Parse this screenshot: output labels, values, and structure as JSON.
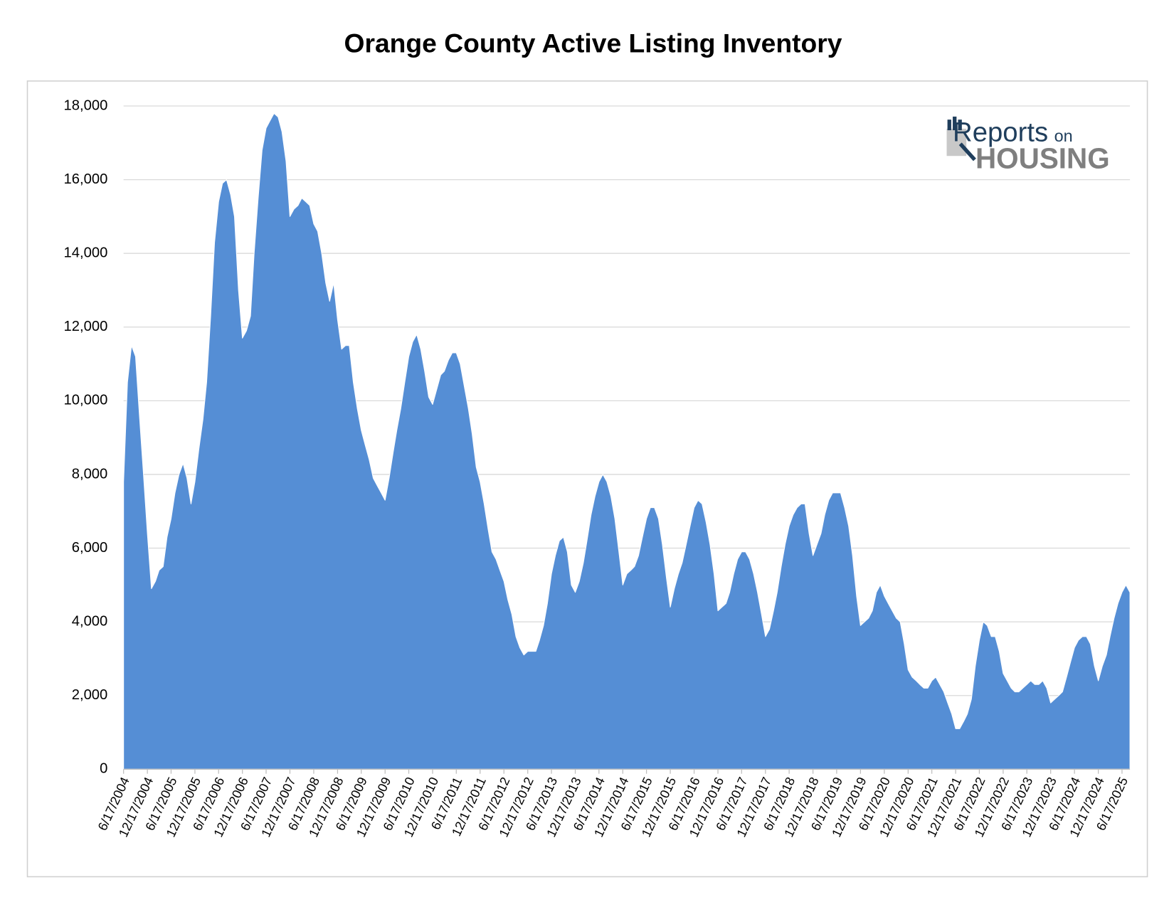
{
  "chart_data": {
    "type": "area",
    "title": "Orange County Active Listing Inventory",
    "color": "#558ed5",
    "grid": true,
    "ylim": [
      0,
      18000
    ],
    "yticks": [
      0,
      {
        "value": 2000,
        "label": "2,000"
      },
      {
        "value": 4000,
        "label": "4,000"
      },
      {
        "value": 6000,
        "label": "6,000"
      },
      {
        "value": 8000,
        "label": "8,000"
      },
      {
        "value": 10000,
        "label": "10,000"
      },
      {
        "value": 12000,
        "label": "12,000"
      },
      {
        "value": 14000,
        "label": "14,000"
      },
      {
        "value": 16000,
        "label": "16,000"
      },
      {
        "value": 18000,
        "label": "18,000"
      }
    ],
    "xlim": [
      "6/17/2004",
      "8/17/2025"
    ],
    "xticks": [
      "6/17/2004",
      "12/17/2004",
      "6/17/2005",
      "12/17/2005",
      "6/17/2006",
      "12/17/2006",
      "6/17/2007",
      "12/17/2007",
      "6/17/2008",
      "12/17/2008",
      "6/17/2009",
      "12/17/2009",
      "6/17/2010",
      "12/17/2010",
      "6/17/2011",
      "12/17/2011",
      "6/17/2012",
      "12/17/2012",
      "6/17/2013",
      "12/17/2013",
      "6/17/2014",
      "12/17/2014",
      "6/17/2015",
      "12/17/2015",
      "6/17/2016",
      "12/17/2016",
      "6/17/2017",
      "12/17/2017",
      "6/17/2018",
      "12/17/2018",
      "6/17/2019",
      "12/17/2019",
      "6/17/2020",
      "12/17/2020",
      "6/17/2021",
      "12/17/2021",
      "6/17/2022",
      "12/17/2022",
      "6/17/2023",
      "12/17/2023",
      "6/17/2024",
      "12/17/2024",
      "6/17/2025"
    ],
    "x": [
      "6/17/2004",
      "7/17/2004",
      "8/17/2004",
      "9/17/2004",
      "10/17/2004",
      "11/17/2004",
      "12/17/2004",
      "1/17/2005",
      "2/17/2005",
      "3/17/2005",
      "4/17/2005",
      "5/17/2005",
      "6/17/2005",
      "7/17/2005",
      "8/17/2005",
      "9/17/2005",
      "10/17/2005",
      "11/17/2005",
      "12/17/2005",
      "1/17/2006",
      "2/17/2006",
      "3/17/2006",
      "4/17/2006",
      "5/17/2006",
      "6/17/2006",
      "7/17/2006",
      "8/17/2006",
      "9/17/2006",
      "10/17/2006",
      "11/17/2006",
      "12/17/2006",
      "1/17/2007",
      "2/17/2007",
      "3/17/2007",
      "4/17/2007",
      "5/17/2007",
      "6/17/2007",
      "7/17/2007",
      "8/17/2007",
      "9/17/2007",
      "10/17/2007",
      "11/17/2007",
      "12/17/2007",
      "1/17/2008",
      "2/17/2008",
      "3/17/2008",
      "4/17/2008",
      "5/17/2008",
      "6/17/2008",
      "7/17/2008",
      "8/17/2008",
      "9/17/2008",
      "10/17/2008",
      "11/17/2008",
      "12/17/2008",
      "1/17/2009",
      "2/17/2009",
      "3/17/2009",
      "4/17/2009",
      "5/17/2009",
      "6/17/2009",
      "7/17/2009",
      "8/17/2009",
      "9/17/2009",
      "10/17/2009",
      "11/17/2009",
      "12/17/2009",
      "1/17/2010",
      "2/17/2010",
      "3/17/2010",
      "4/17/2010",
      "5/17/2010",
      "6/17/2010",
      "7/17/2010",
      "8/17/2010",
      "9/17/2010",
      "10/17/2010",
      "11/17/2010",
      "12/17/2010",
      "1/17/2011",
      "2/17/2011",
      "3/17/2011",
      "4/17/2011",
      "5/17/2011",
      "6/17/2011",
      "7/17/2011",
      "8/17/2011",
      "9/17/2011",
      "10/17/2011",
      "11/17/2011",
      "12/17/2011",
      "1/17/2012",
      "2/17/2012",
      "3/17/2012",
      "4/17/2012",
      "5/17/2012",
      "6/17/2012",
      "7/17/2012",
      "8/17/2012",
      "9/17/2012",
      "10/17/2012",
      "11/17/2012",
      "12/17/2012",
      "1/17/2013",
      "2/17/2013",
      "3/17/2013",
      "4/17/2013",
      "5/17/2013",
      "6/17/2013",
      "7/17/2013",
      "8/17/2013",
      "9/17/2013",
      "10/17/2013",
      "11/17/2013",
      "12/17/2013",
      "1/17/2014",
      "2/17/2014",
      "3/17/2014",
      "4/17/2014",
      "5/17/2014",
      "6/17/2014",
      "7/17/2014",
      "8/17/2014",
      "9/17/2014",
      "10/17/2014",
      "11/17/2014",
      "12/17/2014",
      "1/17/2015",
      "2/17/2015",
      "3/17/2015",
      "4/17/2015",
      "5/17/2015",
      "6/17/2015",
      "7/17/2015",
      "8/17/2015",
      "9/17/2015",
      "10/17/2015",
      "11/17/2015",
      "12/17/2015",
      "1/17/2016",
      "2/17/2016",
      "3/17/2016",
      "4/17/2016",
      "5/17/2016",
      "6/17/2016",
      "7/17/2016",
      "8/17/2016",
      "9/17/2016",
      "10/17/2016",
      "11/17/2016",
      "12/17/2016",
      "1/17/2017",
      "2/17/2017",
      "3/17/2017",
      "4/17/2017",
      "5/17/2017",
      "6/17/2017",
      "7/17/2017",
      "8/17/2017",
      "9/17/2017",
      "10/17/2017",
      "11/17/2017",
      "12/17/2017",
      "1/17/2018",
      "2/17/2018",
      "3/17/2018",
      "4/17/2018",
      "5/17/2018",
      "6/17/2018",
      "7/17/2018",
      "8/17/2018",
      "9/17/2018",
      "10/17/2018",
      "11/17/2018",
      "12/17/2018",
      "1/17/2019",
      "2/17/2019",
      "3/17/2019",
      "4/17/2019",
      "5/17/2019",
      "6/17/2019",
      "7/17/2019",
      "8/17/2019",
      "9/17/2019",
      "10/17/2019",
      "11/17/2019",
      "12/17/2019",
      "1/17/2020",
      "2/17/2020",
      "3/17/2020",
      "4/17/2020",
      "5/17/2020",
      "6/17/2020",
      "7/17/2020",
      "8/17/2020",
      "9/17/2020",
      "10/17/2020",
      "11/17/2020",
      "12/17/2020",
      "1/17/2021",
      "2/17/2021",
      "3/17/2021",
      "4/17/2021",
      "5/17/2021",
      "6/17/2021",
      "7/17/2021",
      "8/17/2021",
      "9/17/2021",
      "10/17/2021",
      "11/17/2021",
      "12/17/2021",
      "1/17/2022",
      "2/17/2022",
      "3/17/2022",
      "4/17/2022",
      "5/17/2022",
      "6/17/2022",
      "7/17/2022",
      "8/17/2022",
      "9/17/2022",
      "10/17/2022",
      "11/17/2022",
      "12/17/2022",
      "1/17/2023",
      "2/17/2023",
      "3/17/2023",
      "4/17/2023",
      "5/17/2023",
      "6/17/2023",
      "7/17/2023",
      "8/17/2023",
      "9/17/2023",
      "10/17/2023",
      "11/17/2023",
      "12/17/2023",
      "1/17/2024",
      "2/17/2024",
      "3/17/2024",
      "4/17/2024",
      "5/17/2024",
      "6/17/2024",
      "7/17/2024",
      "8/17/2024",
      "9/17/2024",
      "10/17/2024",
      "11/17/2024",
      "12/17/2024",
      "1/17/2025",
      "2/17/2025",
      "3/17/2025",
      "4/17/2025",
      "5/17/2025",
      "6/17/2025",
      "7/17/2025",
      "8/17/2025"
    ],
    "values": [
      7800,
      10500,
      11500,
      11200,
      9600,
      8000,
      6400,
      4900,
      5100,
      5400,
      5500,
      6300,
      6800,
      7500,
      8000,
      8300,
      7900,
      7200,
      7800,
      8700,
      9500,
      10500,
      12300,
      14300,
      15400,
      15900,
      16000,
      15600,
      15000,
      13000,
      11700,
      11900,
      12300,
      14000,
      15500,
      16800,
      17400,
      17600,
      17800,
      17700,
      17300,
      16500,
      15000,
      15200,
      15300,
      15500,
      15400,
      15300,
      14800,
      14600,
      14000,
      13200,
      12700,
      13200,
      12200,
      11400,
      11500,
      11500,
      10500,
      9800,
      9200,
      8800,
      8400,
      7900,
      7700,
      7500,
      7300,
      7900,
      8600,
      9200,
      9800,
      10500,
      11200,
      11600,
      11800,
      11400,
      10800,
      10100,
      9900,
      10300,
      10700,
      10800,
      11100,
      11300,
      11300,
      11000,
      10400,
      9800,
      9100,
      8200,
      7800,
      7200,
      6500,
      5900,
      5700,
      5400,
      5100,
      4600,
      4200,
      3600,
      3300,
      3100,
      3200,
      3200,
      3200,
      3500,
      3900,
      4500,
      5300,
      5800,
      6200,
      6300,
      5900,
      5000,
      4800,
      5100,
      5600,
      6200,
      6900,
      7400,
      7800,
      8000,
      7800,
      7400,
      6800,
      5900,
      5000,
      5300,
      5400,
      5500,
      5800,
      6300,
      6800,
      7100,
      7100,
      6800,
      6100,
      5200,
      4400,
      4900,
      5300,
      5600,
      6100,
      6600,
      7100,
      7300,
      7200,
      6700,
      6100,
      5300,
      4300,
      4400,
      4500,
      4800,
      5300,
      5700,
      5900,
      5900,
      5700,
      5300,
      4800,
      4200,
      3600,
      3800,
      4300,
      4800,
      5500,
      6100,
      6600,
      6900,
      7100,
      7200,
      7200,
      6400,
      5800,
      6100,
      6400,
      6900,
      7300,
      7500,
      7500,
      7500,
      7100,
      6600,
      5800,
      4700,
      3900,
      4000,
      4100,
      4300,
      4800,
      5000,
      4700,
      4500,
      4300,
      4100,
      4000,
      3400,
      2700,
      2500,
      2400,
      2300,
      2200,
      2200,
      2400,
      2500,
      2300,
      2100,
      1800,
      1500,
      1100,
      1100,
      1300,
      1500,
      1900,
      2800,
      3500,
      4000,
      3900,
      3600,
      3600,
      3200,
      2600,
      2400,
      2200,
      2100,
      2100,
      2200,
      2300,
      2400,
      2300,
      2300,
      2400,
      2200,
      1800,
      1900,
      2000,
      2100,
      2500,
      2900,
      3300,
      3500,
      3600,
      3600,
      3400,
      2800,
      2400,
      2800,
      3100,
      3600,
      4100,
      4500,
      4800,
      5000,
      4800
    ],
    "logo": {
      "line1": "Reports",
      "line2": "on",
      "line3": "HOUSING"
    }
  }
}
